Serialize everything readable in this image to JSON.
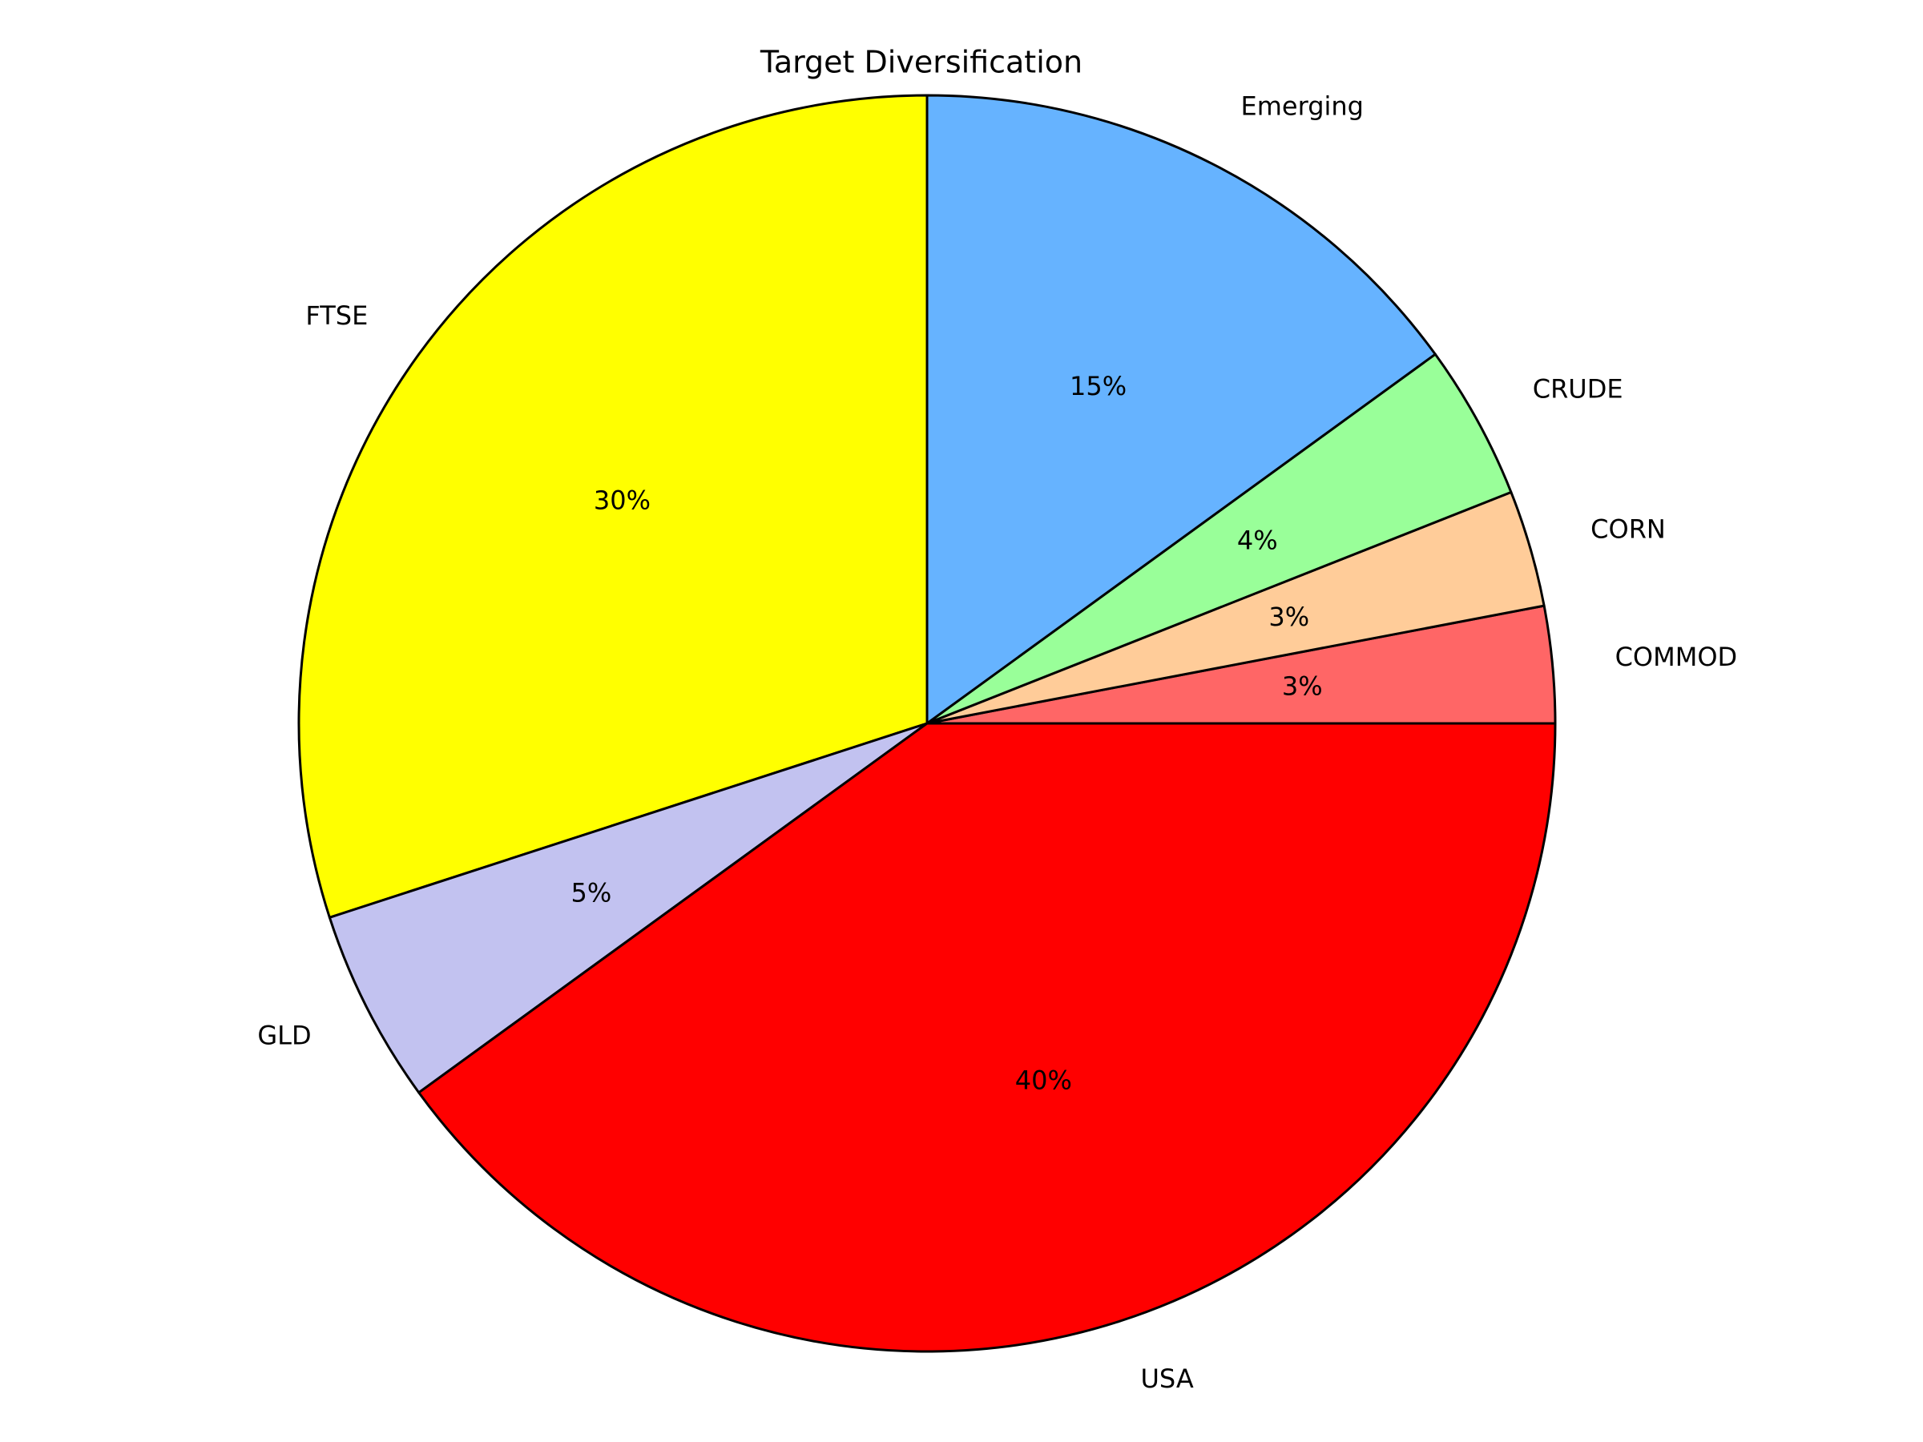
{
  "chart_data": {
    "type": "pie",
    "title": "Target Diversification",
    "categories": [
      "COMMOD",
      "CORN",
      "CRUDE",
      "Emerging",
      "FTSE",
      "GLD",
      "USA"
    ],
    "values": [
      3,
      3,
      4,
      15,
      30,
      5,
      40
    ],
    "value_labels": [
      "3%",
      "3%",
      "4%",
      "15%",
      "30%",
      "5%",
      "40%"
    ],
    "colors": [
      "#ff6666",
      "#ffcc99",
      "#99ff99",
      "#66b3ff",
      "#ffff00",
      "#c2c2f0",
      "#ff0000"
    ]
  }
}
